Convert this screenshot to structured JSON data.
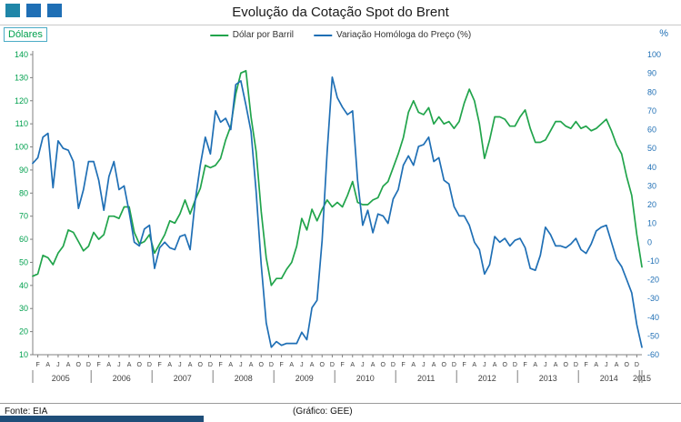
{
  "header": {
    "title": "Evolução da Cotação Spot do Brent",
    "logo_colors": [
      "#1f86a8",
      "#1f6fb5",
      "#1f6fb5"
    ]
  },
  "footer": {
    "source": "Fonte: EIA",
    "credit": "(Gráfico: GEE)",
    "bar_color": "#1f4e79"
  },
  "chart_data": {
    "type": "line",
    "title": "Evolução da Cotação Spot do Brent",
    "grid": false,
    "legend_position": "top",
    "left_axis": {
      "label": "Dólares",
      "min": 10,
      "max": 140,
      "step": 10,
      "color": "#00a04e",
      "box_border": "#4bacc6"
    },
    "right_axis": {
      "label": "%",
      "min": -60,
      "max": 100,
      "step": 10,
      "color": "#1f6fb5"
    },
    "x_axis": {
      "month_letters": [
        "F",
        "A",
        "J",
        "A",
        "O",
        "D"
      ],
      "month_positions": [
        1,
        3,
        5,
        7,
        9,
        11
      ],
      "years": [
        "2005",
        "2006",
        "2007",
        "2008",
        "2009",
        "2010",
        "2011",
        "2012",
        "2013",
        "2014"
      ],
      "end_label": "2015"
    },
    "series": [
      {
        "name": "Dólar por Barril",
        "axis": "left",
        "color": "#21a44b",
        "values": [
          44,
          45,
          53,
          52,
          49,
          54,
          57,
          64,
          63,
          59,
          55,
          57,
          63,
          60,
          62,
          70,
          70,
          69,
          74,
          74,
          63,
          58,
          59,
          62,
          54,
          58,
          62,
          68,
          67,
          71,
          77,
          71,
          77,
          82,
          92,
          91,
          92,
          95,
          103,
          109,
          123,
          132,
          133,
          113,
          98,
          72,
          52,
          40,
          43,
          43,
          47,
          50,
          57,
          69,
          64,
          73,
          68,
          73,
          77,
          74,
          76,
          74,
          79,
          85,
          76,
          75,
          75,
          77,
          78,
          83,
          85,
          91,
          97,
          104,
          115,
          120,
          115,
          114,
          117,
          110,
          113,
          110,
          111,
          108,
          111,
          119,
          125,
          120,
          110,
          95,
          103,
          113,
          113,
          112,
          109,
          109,
          113,
          116,
          108,
          102,
          102,
          103,
          107,
          111,
          111,
          109,
          108,
          111,
          108,
          109,
          107,
          108,
          110,
          112,
          107,
          101,
          97,
          87,
          79,
          62,
          48
        ]
      },
      {
        "name": "Variação Homóloga do Preço (%)",
        "axis": "right",
        "color": "#1f6fb5",
        "values": [
          42,
          45,
          56,
          58,
          29,
          54,
          50,
          49,
          43,
          18,
          28,
          43,
          43,
          33,
          17,
          35,
          43,
          28,
          30,
          16,
          0,
          -2,
          7,
          9,
          -14,
          -3,
          0,
          -3,
          -4,
          3,
          4,
          -4,
          22,
          41,
          56,
          47,
          70,
          64,
          66,
          60,
          84,
          86,
          73,
          59,
          27,
          -12,
          -43,
          -56,
          -53,
          -55,
          -54,
          -54,
          -54,
          -48,
          -52,
          -35,
          -31,
          1,
          48,
          88,
          77,
          72,
          68,
          70,
          33,
          9,
          17,
          5,
          15,
          14,
          10,
          23,
          28,
          41,
          46,
          41,
          51,
          52,
          56,
          43,
          45,
          33,
          31,
          19,
          14,
          14,
          9,
          0,
          -4,
          -17,
          -12,
          3,
          0,
          2,
          -2,
          1,
          2,
          -3,
          -14,
          -15,
          -7,
          8,
          4,
          -2,
          -2,
          -3,
          -1,
          2,
          -4,
          -6,
          -1,
          6,
          8,
          9,
          0,
          -9,
          -13,
          -20,
          -27,
          -44,
          -56
        ]
      }
    ]
  }
}
